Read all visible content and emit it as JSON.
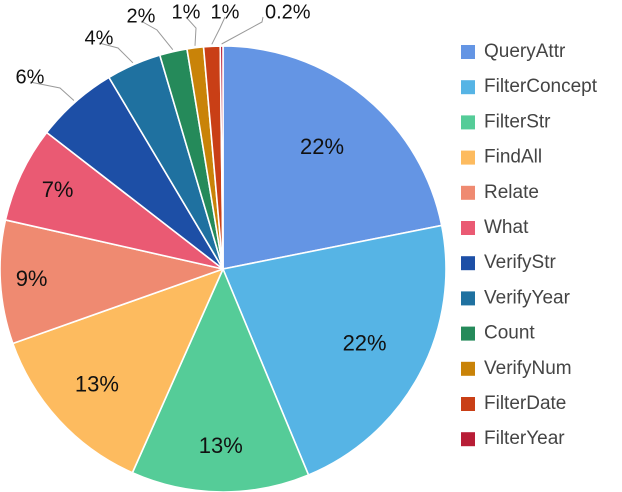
{
  "chart_data": {
    "type": "pie",
    "start_angle_deg": 0,
    "direction": "clockwise",
    "legend_position": "right",
    "slices": [
      {
        "label": "QueryAttr",
        "value": 22,
        "display": "22%",
        "color": "#6495e4"
      },
      {
        "label": "FilterConcept",
        "value": 22,
        "display": "22%",
        "color": "#56b4e5"
      },
      {
        "label": "FilterStr",
        "value": 13,
        "display": "13%",
        "color": "#55cc98"
      },
      {
        "label": "FindAll",
        "value": 13,
        "display": "13%",
        "color": "#fdbb5f"
      },
      {
        "label": "Relate",
        "value": 9,
        "display": "9%",
        "color": "#ef8a71"
      },
      {
        "label": "What",
        "value": 7,
        "display": "7%",
        "color": "#ea5a73"
      },
      {
        "label": "VerifyStr",
        "value": 6,
        "display": "6%",
        "color": "#1d4fa6"
      },
      {
        "label": "VerifyYear",
        "value": 4,
        "display": "4%",
        "color": "#1f71a0"
      },
      {
        "label": "Count",
        "value": 2,
        "display": "2%",
        "color": "#258a5a"
      },
      {
        "label": "VerifyNum",
        "value": 1.2,
        "display": "1%",
        "color": "#c98308"
      },
      {
        "label": "FilterDate",
        "value": 1.2,
        "display": "1%",
        "color": "#c93f16"
      },
      {
        "label": "FilterYear",
        "value": 0.2,
        "display": "0.2%",
        "color": "#b81d36"
      }
    ]
  }
}
